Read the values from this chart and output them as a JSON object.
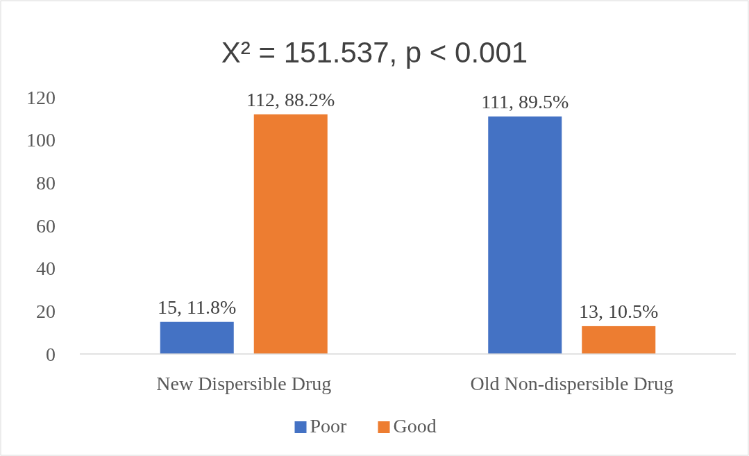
{
  "chart_data": {
    "type": "bar",
    "title": "X² = 151.537, p < 0.001",
    "categories": [
      "New Dispersible Drug",
      "Old Non-dispersible Drug"
    ],
    "series": [
      {
        "name": "Poor",
        "color": "#4472c4",
        "values": [
          15,
          111
        ],
        "value_labels": [
          "15, 11.8%",
          "111, 89.5%"
        ]
      },
      {
        "name": "Good",
        "color": "#ed7d31",
        "values": [
          112,
          13
        ],
        "value_labels": [
          "112, 88.2%",
          "13, 10.5%"
        ]
      }
    ],
    "ylim": [
      0,
      120
    ],
    "yticks": [
      0,
      20,
      40,
      60,
      80,
      100,
      120
    ],
    "grid": false,
    "legend": "bottom"
  }
}
